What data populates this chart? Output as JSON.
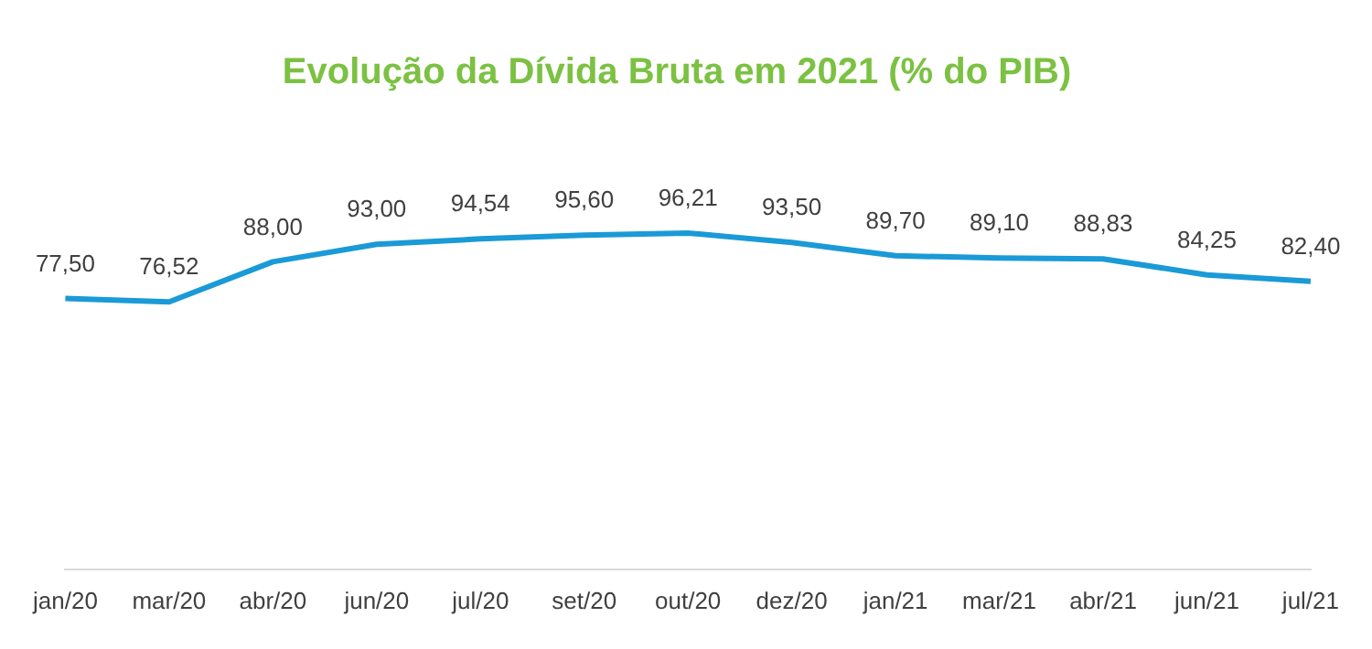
{
  "chart_data": {
    "type": "line",
    "title": "Evolução da Dívida Bruta em 2021 (% do PIB)",
    "categories": [
      "jan/20",
      "mar/20",
      "abr/20",
      "jun/20",
      "jul/20",
      "set/20",
      "out/20",
      "dez/20",
      "jan/21",
      "mar/21",
      "abr/21",
      "jun/21",
      "jul/21"
    ],
    "series": [
      {
        "color": "#1a9ad6",
        "values": [
          77.5,
          76.52,
          88.0,
          93.0,
          94.54,
          95.6,
          96.21,
          93.5,
          89.7,
          89.1,
          88.83,
          84.25,
          82.4
        ],
        "value_labels": [
          "77,50",
          "76,52",
          "88,00",
          "93,00",
          "94,54",
          "95,60",
          "96,21",
          "93,50",
          "89,70",
          "89,10",
          "88,83",
          "84,25",
          "82,40"
        ]
      }
    ],
    "tick_labels": "x",
    "grid": false,
    "legend": false,
    "marker": "none",
    "line_style": "solid"
  }
}
